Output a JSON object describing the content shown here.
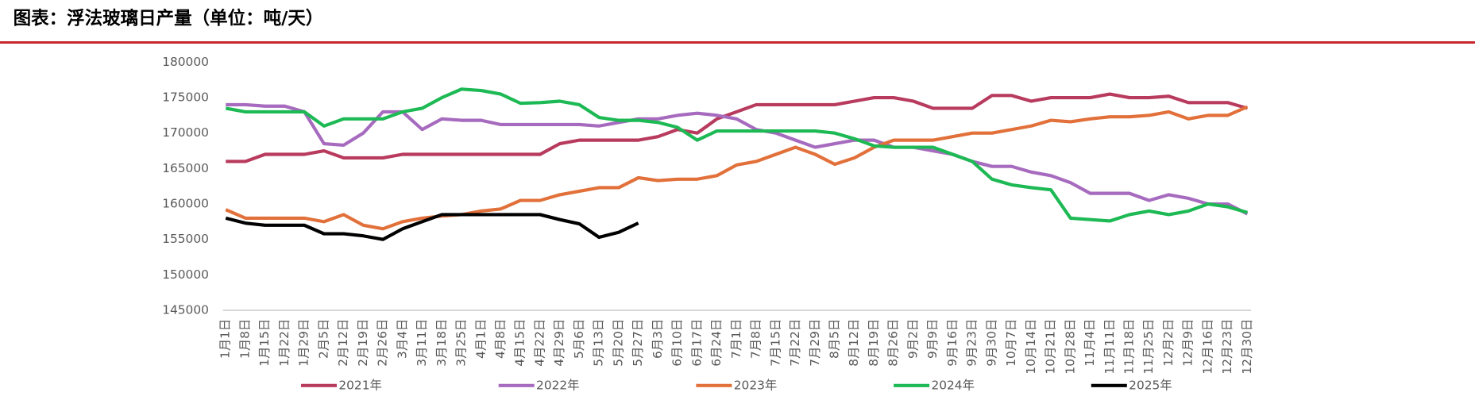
{
  "chart_data": {
    "type": "line",
    "title": "图表：浮法玻璃日产量（单位：吨/天）",
    "categories": [
      "1月1日",
      "1月8日",
      "1月15日",
      "1月22日",
      "1月29日",
      "2月5日",
      "2月12日",
      "2月19日",
      "2月26日",
      "3月4日",
      "3月11日",
      "3月18日",
      "3月25日",
      "4月1日",
      "4月8日",
      "4月15日",
      "4月22日",
      "4月29日",
      "5月6日",
      "5月13日",
      "5月20日",
      "5月27日",
      "6月3日",
      "6月10日",
      "6月17日",
      "6月24日",
      "7月1日",
      "7月8日",
      "7月15日",
      "7月22日",
      "7月29日",
      "8月5日",
      "8月12日",
      "8月19日",
      "8月26日",
      "9月2日",
      "9月9日",
      "9月16日",
      "9月23日",
      "9月30日",
      "10月7日",
      "10月14日",
      "10月21日",
      "10月28日",
      "11月4日",
      "11月11日",
      "11月18日",
      "11月25日",
      "12月2日",
      "12月9日",
      "12月16日",
      "12月23日",
      "12月30日"
    ],
    "series": [
      {
        "name": "2021年",
        "color": "#b83b5e",
        "values": [
          166000,
          166000,
          167000,
          167000,
          167000,
          167500,
          166500,
          166500,
          166500,
          167000,
          167000,
          167000,
          167000,
          167000,
          167000,
          167000,
          167000,
          168500,
          169000,
          169000,
          169000,
          169000,
          169500,
          170500,
          170000,
          172000,
          173000,
          174000,
          174000,
          174000,
          174000,
          174000,
          174500,
          175000,
          175000,
          174500,
          173500,
          173500,
          173500,
          175300,
          175300,
          174500,
          175000,
          175000,
          175000,
          175500,
          175000,
          175000,
          175200,
          174300,
          174300,
          174300,
          173500
        ]
      },
      {
        "name": "2022年",
        "color": "#a66bbe",
        "values": [
          174000,
          174000,
          173800,
          173800,
          173000,
          168500,
          168300,
          170000,
          173000,
          173000,
          170500,
          172000,
          171800,
          171800,
          171200,
          171200,
          171200,
          171200,
          171200,
          171000,
          171500,
          172000,
          172000,
          172500,
          172800,
          172500,
          172000,
          170500,
          170000,
          169000,
          168000,
          168500,
          169000,
          169000,
          168000,
          168000,
          167500,
          167000,
          166000,
          165300,
          165300,
          164500,
          164000,
          163000,
          161500,
          161500,
          161500,
          160500,
          161300,
          160800,
          160000,
          160000,
          158600
        ]
      },
      {
        "name": "2023年",
        "color": "#e2703a",
        "values": [
          159200,
          158000,
          158000,
          158000,
          158000,
          157500,
          158500,
          157000,
          156500,
          157500,
          158000,
          158300,
          158500,
          159000,
          159300,
          160500,
          160500,
          161300,
          161800,
          162300,
          162300,
          163700,
          163300,
          163500,
          163500,
          164000,
          165500,
          166000,
          167000,
          168000,
          167000,
          165600,
          166500,
          168000,
          169000,
          169000,
          169000,
          169500,
          170000,
          170000,
          170500,
          171000,
          171800,
          171600,
          172000,
          172300,
          172300,
          172500,
          173000,
          172000,
          172500,
          172500,
          173700
        ]
      },
      {
        "name": "2024年",
        "color": "#1db954",
        "values": [
          173500,
          173000,
          173000,
          173000,
          173000,
          171000,
          172000,
          172000,
          172000,
          173000,
          173500,
          175000,
          176200,
          176000,
          175500,
          174200,
          174300,
          174500,
          174000,
          172200,
          171800,
          171800,
          171500,
          170800,
          169000,
          170300,
          170300,
          170300,
          170300,
          170300,
          170300,
          170000,
          169200,
          168200,
          168000,
          168000,
          168000,
          167000,
          166000,
          163500,
          162700,
          162300,
          162000,
          158000,
          157800,
          157600,
          158500,
          159000,
          158500,
          159000,
          160000,
          159600,
          158800
        ]
      },
      {
        "name": "2025年",
        "color": "#000000",
        "values": [
          158000,
          157300,
          157000,
          157000,
          157000,
          155800,
          155800,
          155500,
          155000,
          156500,
          157500,
          158500,
          158500,
          158500,
          158500,
          158500,
          158500,
          157800,
          157200,
          155300,
          156000,
          157300,
          null,
          null,
          null,
          null,
          null,
          null,
          null,
          null,
          null,
          null,
          null,
          null,
          null,
          null,
          null,
          null,
          null,
          null,
          null,
          null,
          null,
          null,
          null,
          null,
          null,
          null,
          null,
          null,
          null,
          null,
          null
        ]
      }
    ],
    "ylim": [
      145000,
      180000
    ],
    "yticks": [
      145000,
      150000,
      155000,
      160000,
      165000,
      170000,
      175000,
      180000
    ],
    "grid": false
  }
}
